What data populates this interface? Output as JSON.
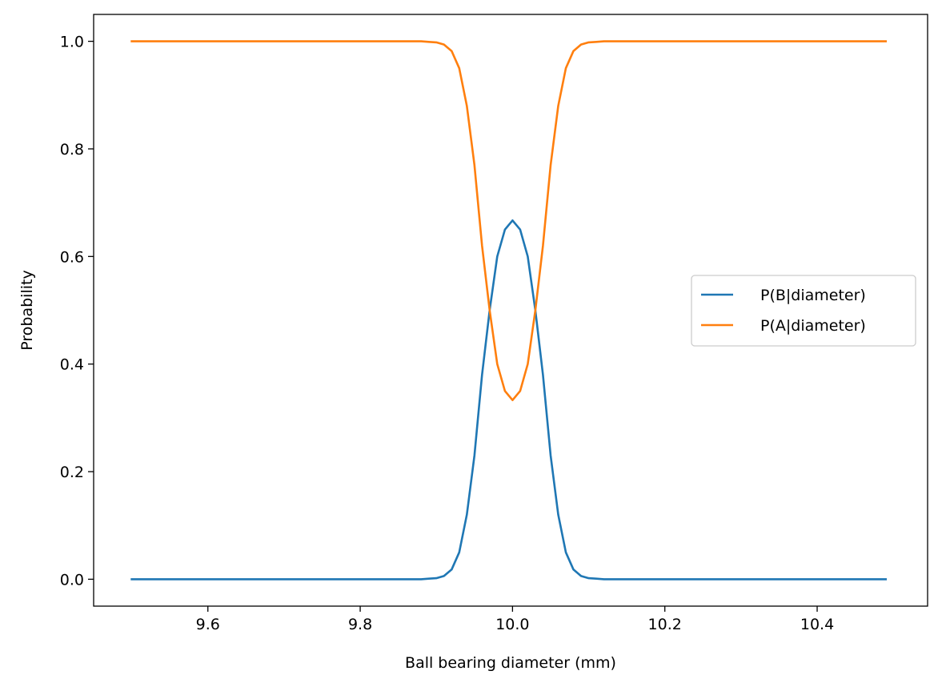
{
  "chart_data": {
    "type": "line",
    "title": "",
    "xlabel": "Ball bearing diameter (mm)",
    "ylabel": "Probability",
    "xlim": [
      9.45,
      10.545
    ],
    "ylim": [
      -0.05,
      1.05
    ],
    "xticks": [
      9.6,
      9.8,
      10.0,
      10.2,
      10.4
    ],
    "xtick_labels": [
      "9.6",
      "9.8",
      "10.0",
      "10.2",
      "10.4"
    ],
    "yticks": [
      0.0,
      0.2,
      0.4,
      0.6,
      0.8,
      1.0
    ],
    "ytick_labels": [
      "0.0",
      "0.2",
      "0.4",
      "0.6",
      "0.8",
      "1.0"
    ],
    "grid": false,
    "legend_position": "center-right",
    "series": [
      {
        "name": "P(B|diameter)",
        "color": "#1f77b4",
        "x": [
          9.5,
          9.88,
          9.89,
          9.9,
          9.91,
          9.92,
          9.93,
          9.94,
          9.95,
          9.96,
          9.97,
          9.98,
          9.99,
          10.0,
          10.01,
          10.02,
          10.03,
          10.04,
          10.05,
          10.06,
          10.07,
          10.08,
          10.09,
          10.1,
          10.11,
          10.12,
          10.49
        ],
        "y": [
          0.0,
          0.0,
          0.001,
          0.002,
          0.006,
          0.018,
          0.05,
          0.12,
          0.23,
          0.38,
          0.5,
          0.6,
          0.65,
          0.667,
          0.65,
          0.6,
          0.5,
          0.38,
          0.23,
          0.12,
          0.05,
          0.018,
          0.006,
          0.002,
          0.001,
          0.0,
          0.0
        ]
      },
      {
        "name": "P(A|diameter)",
        "color": "#ff7f0e",
        "x": [
          9.5,
          9.88,
          9.89,
          9.9,
          9.91,
          9.92,
          9.93,
          9.94,
          9.95,
          9.96,
          9.97,
          9.98,
          9.99,
          10.0,
          10.01,
          10.02,
          10.03,
          10.04,
          10.05,
          10.06,
          10.07,
          10.08,
          10.09,
          10.1,
          10.11,
          10.12,
          10.49
        ],
        "y": [
          1.0,
          1.0,
          0.999,
          0.998,
          0.994,
          0.982,
          0.95,
          0.88,
          0.77,
          0.62,
          0.5,
          0.4,
          0.35,
          0.333,
          0.35,
          0.4,
          0.5,
          0.62,
          0.77,
          0.88,
          0.95,
          0.982,
          0.994,
          0.998,
          0.999,
          1.0,
          1.0
        ]
      }
    ]
  }
}
